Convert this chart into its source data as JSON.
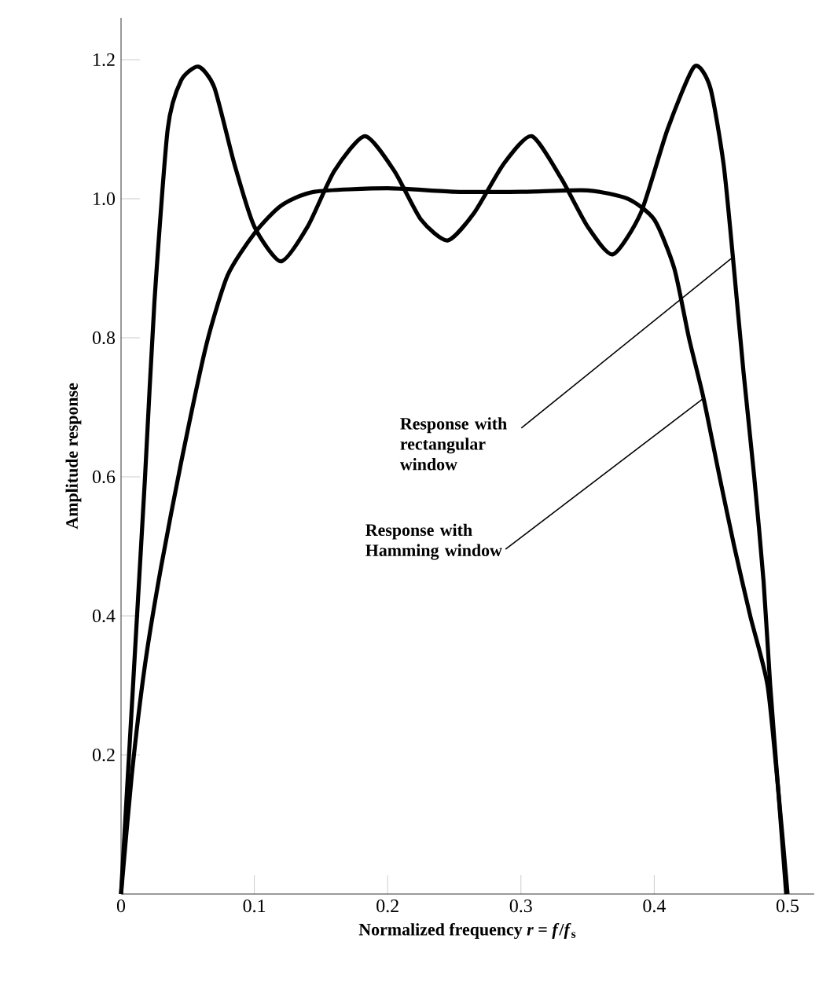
{
  "chart_data": {
    "type": "line",
    "xlabel": "Normalized frequency *r* = *f*/*f*$_{s}$",
    "ylabel": "Amplitude response",
    "xlim": [
      0,
      0.52
    ],
    "ylim": [
      0,
      1.26
    ],
    "xticks": [
      0,
      0.1,
      0.2,
      0.3,
      0.4,
      0.5
    ],
    "yticks": [
      0.2,
      0.4,
      0.6,
      0.8,
      {
        "value": 1.0,
        "label": "1.0"
      },
      1.2
    ],
    "grid": false,
    "marker": "none",
    "line_style": "solid",
    "series": [
      {
        "color": "#000000",
        "x": [
          0,
          0.006,
          0.012,
          0.018,
          0.025,
          0.035,
          0.045,
          0.058,
          0.07,
          0.085,
          0.1,
          0.12,
          0.14,
          0.16,
          0.183,
          0.205,
          0.225,
          0.245,
          0.265,
          0.287,
          0.308,
          0.33,
          0.35,
          0.369,
          0.39,
          0.41,
          0.43,
          0.442,
          0.452,
          0.459,
          0.467,
          0.475,
          0.482,
          0.487,
          0.493,
          0.499
        ],
        "values": [
          0,
          0.2,
          0.4,
          0.6,
          0.85,
          1.1,
          1.17,
          1.19,
          1.16,
          1.05,
          0.96,
          0.91,
          0.96,
          1.04,
          1.09,
          1.04,
          0.97,
          0.94,
          0.98,
          1.05,
          1.09,
          1.03,
          0.96,
          0.92,
          0.98,
          1.1,
          1.19,
          1.16,
          1.05,
          0.916,
          0.75,
          0.6,
          0.45,
          0.3,
          0.15,
          0
        ]
      },
      {
        "color": "#000000",
        "x": [
          0,
          0.008,
          0.018,
          0.03,
          0.045,
          0.064,
          0.08,
          0.1,
          0.12,
          0.145,
          0.2,
          0.25,
          0.3,
          0.35,
          0.38,
          0.4,
          0.415,
          0.426,
          0.437,
          0.449,
          0.46,
          0.472,
          0.485,
          0.493,
          0.5
        ],
        "values": [
          0,
          0.17,
          0.33,
          0.47,
          0.62,
          0.79,
          0.89,
          0.95,
          0.99,
          1.01,
          1.015,
          1.01,
          1.01,
          1.012,
          1.0,
          0.97,
          0.9,
          0.8,
          0.713,
          0.6,
          0.5,
          0.4,
          0.3,
          0.15,
          0
        ]
      }
    ],
    "annotations": [
      {
        "text": "Response with rectangular window",
        "x": 0.459,
        "y": 0.916
      },
      {
        "text": "Response with Hamming window",
        "x": 0.437,
        "y": 0.713
      }
    ]
  }
}
